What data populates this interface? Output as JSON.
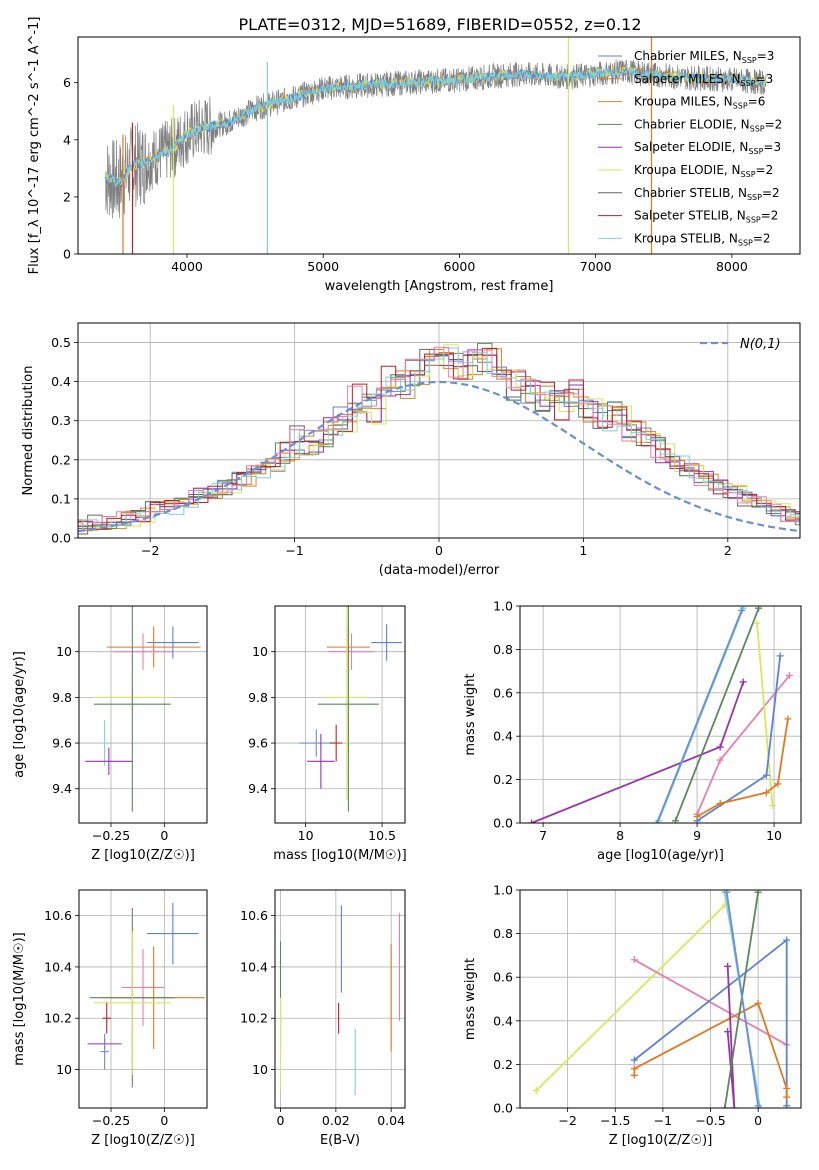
{
  "title": "PLATE=0312, MJD=51689, FIBERID=0552, z=0.12",
  "colors": {
    "Chabrier MILES": "#5b82d6",
    "Salpeter MILES": "#e07a22",
    "Kroupa MILES": "#d28a2a",
    "Chabrier ELODIE": "#5a8a5c",
    "Salpeter ELODIE": "#9932aa",
    "Kroupa ELODIE": "#d8e85a",
    "Chabrier STELIB": "#666666",
    "Salpeter STELIB": "#bb1f27",
    "Kroupa STELIB": "#7fcfd8",
    "Pink": "#e77eb0",
    "Normal": "#6a8fd6"
  },
  "chart_data": [
    {
      "id": "spectrum",
      "type": "line",
      "xlabel": "wavelength [Angstrom, rest frame]",
      "ylabel": "Flux [f_λ 10^-17 erg cm^-2 s^-1 A^-1]",
      "xlim": [
        3200,
        8500
      ],
      "ylim": [
        0,
        7.6
      ],
      "xticks": [
        4000,
        5000,
        6000,
        7000,
        8000
      ],
      "yticks": [
        0,
        2,
        4,
        6
      ],
      "legend_position": "right",
      "legend": [
        {
          "label": "Chabrier MILES",
          "nssp": "3"
        },
        {
          "label": "Salpeter MILES",
          "nssp": "3"
        },
        {
          "label": "Kroupa MILES",
          "nssp": "6"
        },
        {
          "label": "Chabrier ELODIE",
          "nssp": "2"
        },
        {
          "label": "Salpeter ELODIE",
          "nssp": "3"
        },
        {
          "label": "Kroupa ELODIE",
          "nssp": "2"
        },
        {
          "label": "Chabrier STELIB",
          "nssp": "2"
        },
        {
          "label": "Salpeter STELIB",
          "nssp": "2"
        },
        {
          "label": "Kroupa STELIB",
          "nssp": "2"
        }
      ],
      "continuum_x": [
        3400,
        3500,
        3600,
        3700,
        3800,
        3900,
        4000,
        4100,
        4300,
        4500,
        4800,
        5000,
        5300,
        5600,
        6000,
        6400,
        6800,
        7200,
        7600,
        8000,
        8250
      ],
      "continuum_y": [
        2.7,
        2.5,
        3.1,
        3.2,
        3.5,
        3.7,
        4.2,
        4.4,
        4.6,
        5.1,
        5.5,
        5.8,
        5.9,
        6.0,
        6.1,
        6.3,
        6.2,
        6.4,
        6.2,
        6.1,
        6.0
      ]
    },
    {
      "id": "residuals",
      "type": "histogram",
      "xlabel": "(data-model)/error",
      "ylabel": "Normed distribution",
      "xlim": [
        -2.5,
        2.5
      ],
      "ylim": [
        0,
        0.55
      ],
      "xticks": [
        -2,
        -1,
        0,
        1,
        2
      ],
      "yticks": [
        0.0,
        0.1,
        0.2,
        0.3,
        0.4,
        0.5
      ],
      "grid": true,
      "legend_position": "top-right",
      "normal_label": "N(0,1)",
      "bin_edges_step": 0.1,
      "base_profile": [
        0.03,
        0.03,
        0.04,
        0.04,
        0.05,
        0.06,
        0.08,
        0.08,
        0.09,
        0.11,
        0.12,
        0.13,
        0.15,
        0.17,
        0.19,
        0.21,
        0.25,
        0.24,
        0.27,
        0.31,
        0.36,
        0.33,
        0.4,
        0.39,
        0.42,
        0.45,
        0.46,
        0.44,
        0.45,
        0.46,
        0.41,
        0.39,
        0.38,
        0.36,
        0.34,
        0.37,
        0.33,
        0.31,
        0.32,
        0.27,
        0.26,
        0.23,
        0.19,
        0.17,
        0.15,
        0.13,
        0.12,
        0.1,
        0.09,
        0.07,
        0.06,
        0.05,
        0.04
      ]
    },
    {
      "id": "age_vs_Z",
      "type": "errorbar",
      "xlabel": "Z [log10(Z/Z☉)]",
      "ylabel": "age [log10(age/yr)]",
      "xlim": [
        -0.4,
        0.2
      ],
      "ylim": [
        9.25,
        10.2
      ],
      "xticks": [
        -0.25,
        0.0
      ],
      "yticks": [
        9.4,
        9.6,
        9.8,
        10.0
      ],
      "points": [
        {
          "c": "Chabrier MILES",
          "x": 0.04,
          "xerr": 0.12,
          "y": 10.04,
          "yerr": 0.07
        },
        {
          "c": "Salpeter MILES",
          "x": -0.05,
          "xerr": 0.22,
          "y": 10.02,
          "yerr": 0.09
        },
        {
          "c": "Pink",
          "x": -0.1,
          "xerr": 0.14,
          "y": 10.0,
          "yerr": 0.08
        },
        {
          "c": "Kroupa ELODIE",
          "x": -0.15,
          "xerr": 0.18,
          "y": 9.8,
          "yerr": 0.05
        },
        {
          "c": "Chabrier ELODIE",
          "x": -0.15,
          "xerr": 0.18,
          "y": 9.77,
          "yerr": 0.47
        },
        {
          "c": "Kroupa STELIB",
          "x": -0.28,
          "xerr": 0.02,
          "y": 9.6,
          "yerr": 0.1
        },
        {
          "c": "Salpeter ELODIE",
          "x": -0.26,
          "xerr": 0.11,
          "y": 9.52,
          "yerr": 0.06
        }
      ]
    },
    {
      "id": "age_vs_mass",
      "type": "errorbar",
      "xlabel": "mass [log10(M/M☉)]",
      "ylabel": "",
      "xlim": [
        9.8,
        10.65
      ],
      "ylim": [
        9.25,
        10.2
      ],
      "xticks": [
        10.0,
        10.5
      ],
      "yticks": [
        9.4,
        9.6,
        9.8,
        10.0
      ],
      "points": [
        {
          "c": "Chabrier MILES",
          "x": 10.53,
          "xerr": 0.1,
          "y": 10.04,
          "yerr": 0.08
        },
        {
          "c": "Salpeter MILES",
          "x": 10.28,
          "xerr": 0.14,
          "y": 10.02,
          "yerr": 0.09
        },
        {
          "c": "Pink",
          "x": 10.3,
          "xerr": 0.15,
          "y": 10.0,
          "yerr": 0.08
        },
        {
          "c": "Kroupa ELODIE",
          "x": 10.27,
          "xerr": 0.14,
          "y": 9.8,
          "yerr": 0.45
        },
        {
          "c": "Chabrier ELODIE",
          "x": 10.28,
          "xerr": 0.2,
          "y": 9.77,
          "yerr": 0.47
        },
        {
          "c": "Normal",
          "x": 10.07,
          "xerr": 0.11,
          "y": 9.6,
          "yerr": 0.06
        },
        {
          "c": "Salpeter STELIB",
          "x": 10.2,
          "xerr": 0.04,
          "y": 9.6,
          "yerr": 0.08
        },
        {
          "c": "Salpeter ELODIE",
          "x": 10.1,
          "xerr": 0.09,
          "y": 9.52,
          "yerr": 0.12
        }
      ]
    },
    {
      "id": "weight_vs_age",
      "type": "line",
      "xlabel": "age [log10(age/yr)]",
      "ylabel": "mass weight",
      "xlim": [
        6.7,
        10.35
      ],
      "ylim": [
        0.0,
        1.0
      ],
      "xticks": [
        7,
        8,
        9,
        10
      ],
      "yticks": [
        0.0,
        0.2,
        0.4,
        0.6,
        0.8,
        1.0
      ],
      "grid": true,
      "series": [
        {
          "c": "Salpeter ELODIE",
          "x": [
            6.85,
            9.3,
            9.6
          ],
          "y": [
            0.0,
            0.35,
            0.65
          ]
        },
        {
          "c": "Pink",
          "x": [
            9.0,
            9.3,
            10.2
          ],
          "y": [
            0.04,
            0.29,
            0.68
          ]
        },
        {
          "c": "Chabrier ELODIE",
          "x": [
            8.72,
            9.8
          ],
          "y": [
            0.01,
            0.99
          ]
        },
        {
          "c": "Kroupa STELIB",
          "x": [
            8.5,
            9.6
          ],
          "y": [
            0.01,
            0.99
          ]
        },
        {
          "c": "Normal",
          "x": [
            8.48,
            9.58
          ],
          "y": [
            0.0,
            0.98
          ]
        },
        {
          "c": "Kroupa ELODIE",
          "x": [
            9.78,
            9.98
          ],
          "y": [
            0.92,
            0.08
          ]
        },
        {
          "c": "Chabrier MILES",
          "x": [
            9.0,
            9.9,
            10.08
          ],
          "y": [
            0.01,
            0.22,
            0.77
          ]
        },
        {
          "c": "Salpeter MILES",
          "x": [
            9.0,
            9.3,
            9.9,
            10.05,
            10.18
          ],
          "y": [
            0.03,
            0.09,
            0.14,
            0.18,
            0.48
          ]
        }
      ]
    },
    {
      "id": "mass_vs_Z",
      "type": "errorbar",
      "xlabel": "Z [log10(Z/Z☉)]",
      "ylabel": "mass [log10(M/M☉)]",
      "xlim": [
        -0.4,
        0.2
      ],
      "ylim": [
        9.85,
        10.7
      ],
      "xticks": [
        -0.25,
        0.0
      ],
      "yticks": [
        10.0,
        10.2,
        10.4,
        10.6
      ],
      "points": [
        {
          "c": "Chabrier MILES",
          "x": 0.04,
          "xerr": 0.12,
          "y": 10.53,
          "yerr": 0.12
        },
        {
          "c": "Pink",
          "x": -0.1,
          "xerr": 0.1,
          "y": 10.32,
          "yerr": 0.15
        },
        {
          "c": "Salpeter MILES",
          "x": -0.05,
          "xerr": 0.24,
          "y": 10.28,
          "yerr": 0.2
        },
        {
          "c": "Chabrier ELODIE",
          "x": -0.15,
          "xerr": 0.2,
          "y": 10.28,
          "yerr": 0.35
        },
        {
          "c": "Kroupa ELODIE",
          "x": -0.15,
          "xerr": 0.18,
          "y": 10.26,
          "yerr": 0.28
        },
        {
          "c": "Salpeter STELIB",
          "x": -0.27,
          "xerr": 0.02,
          "y": 10.2,
          "yerr": 0.06
        },
        {
          "c": "Salpeter ELODIE",
          "x": -0.28,
          "xerr": 0.08,
          "y": 10.1,
          "yerr": 0.02
        },
        {
          "c": "Normal",
          "x": -0.28,
          "xerr": 0.02,
          "y": 10.07,
          "yerr": 0.07
        }
      ]
    },
    {
      "id": "mass_vs_EBV",
      "type": "errorbar",
      "xlabel": "E(B-V)",
      "ylabel": "",
      "xlim": [
        -0.002,
        0.045
      ],
      "ylim": [
        9.85,
        10.7
      ],
      "xticks": [
        0.0,
        0.02,
        0.04
      ],
      "yticks": [
        10.0,
        10.2,
        10.4,
        10.6
      ],
      "points": [
        {
          "c": "Chabrier ELODIE",
          "x": 0.0,
          "xerr": 0.0,
          "y": 10.28,
          "yerr": 0.22
        },
        {
          "c": "Kroupa ELODIE",
          "x": 0.0,
          "xerr": 0.0,
          "y": 10.1,
          "yerr": 0.18
        },
        {
          "c": "Salpeter STELIB",
          "x": 0.021,
          "xerr": 0.0,
          "y": 10.2,
          "yerr": 0.06
        },
        {
          "c": "Chabrier MILES",
          "x": 0.022,
          "xerr": 0.0,
          "y": 10.47,
          "yerr": 0.17
        },
        {
          "c": "Kroupa STELIB",
          "x": 0.027,
          "xerr": 0.0,
          "y": 10.03,
          "yerr": 0.13
        },
        {
          "c": "Salpeter MILES",
          "x": 0.04,
          "xerr": 0.0,
          "y": 10.28,
          "yerr": 0.21
        },
        {
          "c": "Pink",
          "x": 0.043,
          "xerr": 0.0,
          "y": 10.4,
          "yerr": 0.21
        }
      ]
    },
    {
      "id": "weight_vs_Z",
      "type": "line",
      "xlabel": "Z [log10(Z/Z☉)]",
      "ylabel": "mass weight",
      "xlim": [
        -2.5,
        0.45
      ],
      "ylim": [
        0.0,
        1.0
      ],
      "xticks": [
        -2.0,
        -1.5,
        -1.0,
        -0.5,
        0.0
      ],
      "yticks": [
        0.0,
        0.2,
        0.4,
        0.6,
        0.8,
        1.0
      ],
      "grid": true,
      "series": [
        {
          "c": "Kroupa ELODIE",
          "x": [
            -2.33,
            -0.35
          ],
          "y": [
            0.08,
            0.93
          ]
        },
        {
          "c": "Pink",
          "x": [
            -1.3,
            0.3
          ],
          "y": [
            0.68,
            0.29
          ]
        },
        {
          "c": "Chabrier MILES",
          "x": [
            -1.3,
            0.3,
            0.3
          ],
          "y": [
            0.22,
            0.77,
            0.01
          ]
        },
        {
          "c": "Salpeter MILES",
          "x": [
            -1.3,
            -1.3,
            0.0,
            0.3,
            0.3
          ],
          "y": [
            0.15,
            0.18,
            0.48,
            0.09,
            0.05
          ]
        },
        {
          "c": "Salpeter ELODIE",
          "x": [
            -0.32,
            -0.25,
            -0.32
          ],
          "y": [
            0.65,
            0.0,
            0.35
          ]
        },
        {
          "c": "Chabrier ELODIE",
          "x": [
            -0.35,
            0.0
          ],
          "y": [
            0.0,
            0.99
          ]
        },
        {
          "c": "Kroupa STELIB",
          "x": [
            -0.35,
            0.02
          ],
          "y": [
            0.99,
            0.0
          ]
        },
        {
          "c": "Normal",
          "x": [
            -0.33,
            0.0
          ],
          "y": [
            0.99,
            0.01
          ]
        }
      ]
    }
  ]
}
